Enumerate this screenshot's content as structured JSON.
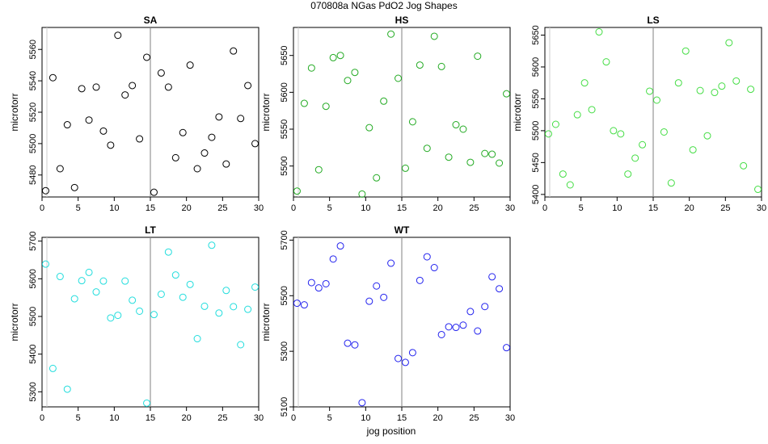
{
  "title": "070808a    NGas PdO2 Jog Shapes",
  "xlabel": "jog position",
  "chart_data": [
    {
      "type": "scatter",
      "title": "SA",
      "ylabel": "microtorr",
      "color": "#000000",
      "xlim": [
        0,
        30
      ],
      "ylim": [
        5466,
        5574
      ],
      "x_ticks": [
        0,
        5,
        10,
        15,
        20,
        25,
        30
      ],
      "y_ticks": [
        5480,
        5500,
        5520,
        5540,
        5560
      ],
      "marker_x": 15,
      "x": [
        0.5,
        1.5,
        2.5,
        3.5,
        4.5,
        5.5,
        6.5,
        7.5,
        8.5,
        9.5,
        10.5,
        11.5,
        12.5,
        13.5,
        14.5,
        15.5,
        16.5,
        17.5,
        18.5,
        19.5,
        20.5,
        21.5,
        22.5,
        23.5,
        24.5,
        25.5,
        26.5,
        27.5,
        28.5,
        29.5
      ],
      "y": [
        5470,
        5542,
        5484,
        5512,
        5472,
        5535,
        5515,
        5536,
        5508,
        5499,
        5569,
        5531,
        5537,
        5503,
        5555,
        5469,
        5545,
        5536,
        5491,
        5507,
        5550,
        5484,
        5494,
        5504,
        5517,
        5487,
        5559,
        5516,
        5537,
        5500
      ]
    },
    {
      "type": "scatter",
      "title": "HS",
      "ylabel": "microtorr",
      "color": "#22aa22",
      "xlim": [
        0,
        30
      ],
      "ylim": [
        5458,
        5688
      ],
      "x_ticks": [
        0,
        5,
        10,
        15,
        20,
        25,
        30
      ],
      "y_ticks": [
        5500,
        5550,
        5600,
        5650
      ],
      "marker_x": 15,
      "x": [
        0.5,
        1.5,
        2.5,
        3.5,
        4.5,
        5.5,
        6.5,
        7.5,
        8.5,
        9.5,
        10.5,
        11.5,
        12.5,
        13.5,
        14.5,
        15.5,
        16.5,
        17.5,
        18.5,
        19.5,
        20.5,
        21.5,
        22.5,
        23.5,
        24.5,
        25.5,
        26.5,
        27.5,
        28.5,
        29.5
      ],
      "y": [
        5466,
        5585,
        5633,
        5495,
        5581,
        5647,
        5650,
        5616,
        5627,
        5462,
        5552,
        5484,
        5588,
        5679,
        5619,
        5497,
        5560,
        5637,
        5524,
        5676,
        5635,
        5512,
        5556,
        5550,
        5505,
        5649,
        5517,
        5516,
        5504,
        5598
      ]
    },
    {
      "type": "scatter",
      "title": "LS",
      "ylabel": "microtorr",
      "color": "#44dd44",
      "xlim": [
        0,
        30
      ],
      "ylim": [
        5396,
        5662
      ],
      "x_ticks": [
        0,
        5,
        10,
        15,
        20,
        25,
        30
      ],
      "y_ticks": [
        5400,
        5450,
        5500,
        5550,
        5600,
        5650
      ],
      "marker_x": 15,
      "x": [
        0.5,
        1.5,
        2.5,
        3.5,
        4.5,
        5.5,
        6.5,
        7.5,
        8.5,
        9.5,
        10.5,
        11.5,
        12.5,
        13.5,
        14.5,
        15.5,
        16.5,
        17.5,
        18.5,
        19.5,
        20.5,
        21.5,
        22.5,
        23.5,
        24.5,
        25.5,
        26.5,
        27.5,
        28.5,
        29.5
      ],
      "y": [
        5495,
        5510,
        5432,
        5415,
        5525,
        5575,
        5533,
        5655,
        5608,
        5500,
        5495,
        5432,
        5457,
        5478,
        5562,
        5548,
        5498,
        5418,
        5575,
        5625,
        5470,
        5563,
        5492,
        5560,
        5570,
        5638,
        5578,
        5445,
        5565,
        5408
      ]
    },
    {
      "type": "scatter",
      "title": "LT",
      "ylabel": "microtorr",
      "color": "#22dddd",
      "xlim": [
        0,
        30
      ],
      "ylim": [
        5260,
        5710
      ],
      "x_ticks": [
        0,
        5,
        10,
        15,
        20,
        25,
        30
      ],
      "y_ticks": [
        5300,
        5400,
        5500,
        5600,
        5700
      ],
      "marker_x": 15,
      "x": [
        0.5,
        1.5,
        2.5,
        3.5,
        4.5,
        5.5,
        6.5,
        7.5,
        8.5,
        9.5,
        10.5,
        11.5,
        12.5,
        13.5,
        14.5,
        15.5,
        16.5,
        17.5,
        18.5,
        19.5,
        20.5,
        21.5,
        22.5,
        23.5,
        24.5,
        25.5,
        26.5,
        27.5,
        28.5,
        29.5
      ],
      "y": [
        5639,
        5362,
        5606,
        5307,
        5547,
        5595,
        5617,
        5565,
        5594,
        5496,
        5503,
        5594,
        5543,
        5514,
        5270,
        5505,
        5559,
        5671,
        5610,
        5551,
        5585,
        5441,
        5527,
        5689,
        5509,
        5569,
        5526,
        5425,
        5519,
        5578
      ]
    },
    {
      "type": "scatter",
      "title": "WT",
      "ylabel": "microtorr",
      "color": "#2222ee",
      "xlim": [
        0,
        30
      ],
      "ylim": [
        5100,
        5710
      ],
      "x_ticks": [
        0,
        5,
        10,
        15,
        20,
        25,
        30
      ],
      "y_ticks": [
        5100,
        5300,
        5500,
        5700
      ],
      "marker_x": 15,
      "x": [
        0.5,
        1.5,
        2.5,
        3.5,
        4.5,
        5.5,
        6.5,
        7.5,
        8.5,
        9.5,
        10.5,
        11.5,
        12.5,
        13.5,
        14.5,
        15.5,
        16.5,
        17.5,
        18.5,
        19.5,
        20.5,
        21.5,
        22.5,
        23.5,
        24.5,
        25.5,
        26.5,
        27.5,
        28.5,
        29.5
      ],
      "y": [
        5473,
        5467,
        5547,
        5528,
        5543,
        5632,
        5679,
        5329,
        5323,
        5115,
        5480,
        5535,
        5494,
        5617,
        5274,
        5260,
        5295,
        5555,
        5640,
        5601,
        5360,
        5388,
        5386,
        5394,
        5443,
        5373,
        5461,
        5568,
        5525,
        5313
      ]
    }
  ]
}
